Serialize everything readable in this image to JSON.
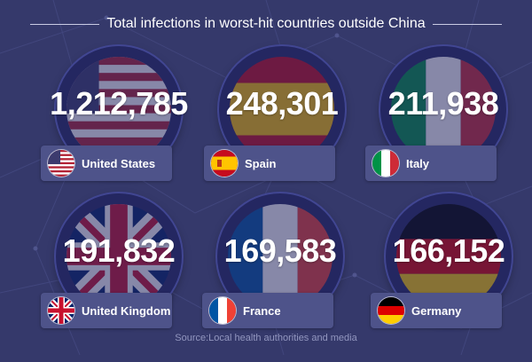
{
  "header": {
    "title": "Total infections in worst-hit countries outside China"
  },
  "countries": [
    {
      "name": "United States",
      "count": "1,212,785",
      "flag_icon": "us-flag-icon"
    },
    {
      "name": "Spain",
      "count": "248,301",
      "flag_icon": "spain-flag-icon"
    },
    {
      "name": "Italy",
      "count": "211,938",
      "flag_icon": "italy-flag-icon"
    },
    {
      "name": "United Kingdom",
      "count": "191,832",
      "flag_icon": "uk-flag-icon"
    },
    {
      "name": "France",
      "count": "169,583",
      "flag_icon": "france-flag-icon"
    },
    {
      "name": "Germany",
      "count": "166,152",
      "flag_icon": "germany-flag-icon"
    }
  ],
  "footer": {
    "source": "Source:Local health authorities and media"
  },
  "colors": {
    "background": "#35396b",
    "ring": "#242761",
    "label_bg": "#4e538a",
    "text": "#ffffff",
    "source_text": "#9296bf"
  }
}
